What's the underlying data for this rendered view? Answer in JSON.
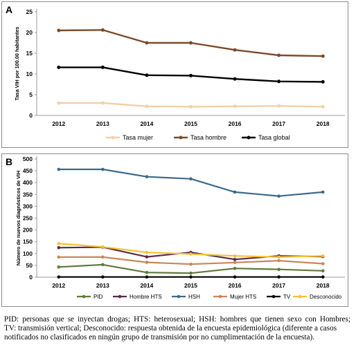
{
  "chart_data": [
    {
      "type": "line",
      "panel_label": "A",
      "ylabel": "Tasa VIH por 100.00 habitantes",
      "xlabel": "",
      "x": [
        "2012",
        "2013",
        "2014",
        "2015",
        "2016",
        "2017",
        "2018"
      ],
      "ylim": [
        0,
        25
      ],
      "yticks": [
        "0",
        "5",
        "10",
        "15",
        "20",
        "25"
      ],
      "grid": false,
      "legend_position": "bottom",
      "series": [
        {
          "name": "Tasa mujer",
          "color": "#f6cfa5",
          "values": [
            3.0,
            3.0,
            2.2,
            2.1,
            2.2,
            2.3,
            2.1
          ]
        },
        {
          "name": "Tasa hombre",
          "color": "#7b4a2a",
          "values": [
            20.5,
            20.6,
            17.5,
            17.5,
            15.8,
            14.5,
            14.3
          ]
        },
        {
          "name": "Tasa global",
          "color": "#000000",
          "values": [
            11.6,
            11.6,
            9.7,
            9.6,
            8.8,
            8.2,
            8.1
          ]
        }
      ]
    },
    {
      "type": "line",
      "panel_label": "B",
      "ylabel": "Número de nuevos diagnósticos de VIH",
      "xlabel": "",
      "x": [
        "2012",
        "2013",
        "2014",
        "2015",
        "2016",
        "2017",
        "2018"
      ],
      "ylim": [
        0,
        500
      ],
      "yticks": [
        "0",
        "50",
        "100",
        "150",
        "200",
        "250",
        "300",
        "350",
        "400",
        "450",
        "500"
      ],
      "grid": false,
      "legend_position": "bottom",
      "series": [
        {
          "name": "PID",
          "color": "#5d7a3a",
          "values": [
            43,
            53,
            20,
            17,
            37,
            33,
            27
          ]
        },
        {
          "name": "Hombre HTS",
          "color": "#5b2a4e",
          "values": [
            125,
            127,
            86,
            105,
            75,
            90,
            87
          ]
        },
        {
          "name": "HSH",
          "color": "#3b6a8c",
          "values": [
            456,
            456,
            425,
            416,
            360,
            343,
            360
          ]
        },
        {
          "name": "Mujer HTS",
          "color": "#c8875a",
          "values": [
            85,
            85,
            63,
            55,
            62,
            70,
            57
          ]
        },
        {
          "name": "TV",
          "color": "#000000",
          "values": [
            1,
            1,
            1,
            1,
            1,
            1,
            1
          ]
        },
        {
          "name": "Desconocido",
          "color": "#f5c231",
          "values": [
            142,
            128,
            105,
            98,
            90,
            85,
            90
          ]
        }
      ]
    }
  ],
  "caption": {
    "line1": "PID: personas que se inyectan drogas; HTS: heterosexual; HSH: hombres que tienen sexo con Hombres;",
    "line2": "TV: transmisión vertical; Desconocido: respuesta obtenida de la encuesta epidemiológica (diferente a casos",
    "line3": "notificados no clasificados en ningún grupo de transmisión por no cumplimentación de la encuesta)."
  }
}
